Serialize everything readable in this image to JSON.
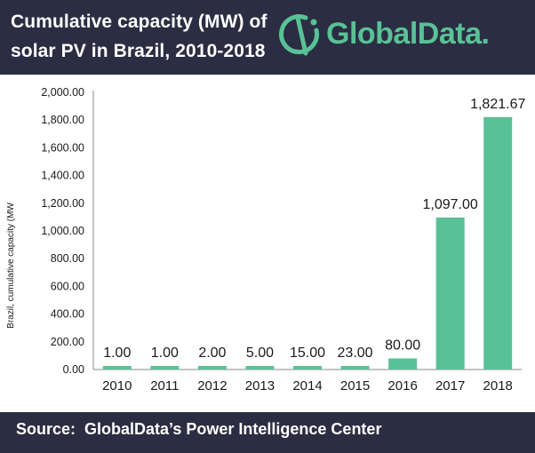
{
  "header": {
    "title": "Cumulative capacity (MW) of\nsolar PV in Brazil, 2010-2018",
    "logo_text": "GlobalData."
  },
  "footer": {
    "source": "Source:  GlobalData’s Power Intelligence Center"
  },
  "colors": {
    "bar": "#59c196",
    "header_bg": "#2b2d42",
    "axis": "#888888"
  },
  "chart_data": {
    "type": "bar",
    "title": "Cumulative capacity (MW) of solar PV in Brazil, 2010-2018",
    "xlabel": "",
    "ylabel": "Brazil, cumulative capacity (MW",
    "ylim": [
      0,
      2000
    ],
    "yticks": [
      0,
      200,
      400,
      600,
      800,
      1000,
      1200,
      1400,
      1600,
      1800,
      2000
    ],
    "ytick_labels": [
      "0.00",
      "200.00",
      "400.00",
      "600.00",
      "800.00",
      "1,000.00",
      "1,200.00",
      "1,400.00",
      "1,600.00",
      "1,800.00",
      "2,000.00"
    ],
    "categories": [
      "2010",
      "2011",
      "2012",
      "2013",
      "2014",
      "2015",
      "2016",
      "2017",
      "2018"
    ],
    "values": [
      1.0,
      1.0,
      2.0,
      5.0,
      15.0,
      23.0,
      80.0,
      1097.0,
      1821.67
    ],
    "value_labels": [
      "1.00",
      "1.00",
      "2.00",
      "5.00",
      "15.00",
      "23.00",
      "80.00",
      "1,097.00",
      "1,821.67"
    ],
    "grid": false,
    "legend": "none"
  }
}
